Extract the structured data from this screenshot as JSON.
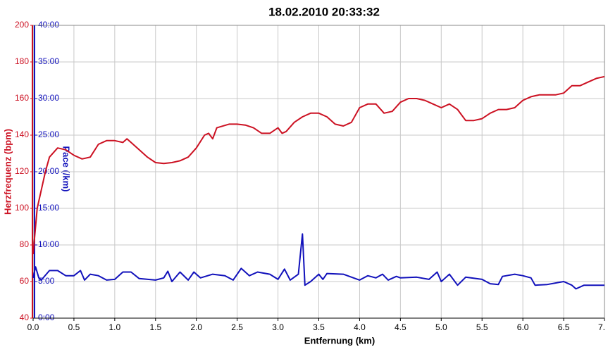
{
  "chart_data": {
    "type": "line",
    "title": "18.02.2010 20:33:32",
    "xlabel": "Entfernung (km)",
    "ylabel": "Herzfrequenz (bpm)",
    "y2label": "Pace (/km)",
    "xlim": [
      0,
      7
    ],
    "xticks": [
      {
        "value": 0,
        "label": "0.0"
      },
      {
        "value": 0.5,
        "label": "0.5"
      },
      {
        "value": 1,
        "label": "1.0"
      },
      {
        "value": 1.5,
        "label": "1.5"
      },
      {
        "value": 2,
        "label": "2.0"
      },
      {
        "value": 2.5,
        "label": "2.5"
      },
      {
        "value": 3,
        "label": "3.0"
      },
      {
        "value": 3.5,
        "label": "3.5"
      },
      {
        "value": 4,
        "label": "4.0"
      },
      {
        "value": 4.5,
        "label": "4.5"
      },
      {
        "value": 5,
        "label": "5.0"
      },
      {
        "value": 5.5,
        "label": "5.5"
      },
      {
        "value": 6,
        "label": "6.0"
      },
      {
        "value": 6.5,
        "label": "6.5"
      },
      {
        "value": 7,
        "label": "7."
      }
    ],
    "ylim": [
      40,
      200
    ],
    "yticks": [
      40,
      60,
      80,
      100,
      120,
      140,
      160,
      180,
      200
    ],
    "y2lim": [
      0,
      40
    ],
    "y2ticks": [
      {
        "value": 0,
        "label": "0:00"
      },
      {
        "value": 5,
        "label": "5:00"
      },
      {
        "value": 10,
        "label": "10:00"
      },
      {
        "value": 15,
        "label": "15:00"
      },
      {
        "value": 20,
        "label": "20:00"
      },
      {
        "value": 25,
        "label": "25:00"
      },
      {
        "value": 30,
        "label": "30:00"
      },
      {
        "value": 35,
        "label": "35:00"
      },
      {
        "value": 40,
        "label": "40:00"
      }
    ],
    "grid": true,
    "series": [
      {
        "color": "#cc1122",
        "x": [
          0,
          0.02,
          0.05,
          0.1,
          0.15,
          0.2,
          0.3,
          0.4,
          0.5,
          0.6,
          0.7,
          0.8,
          0.9,
          1.0,
          1.1,
          1.15,
          1.2,
          1.3,
          1.4,
          1.5,
          1.6,
          1.7,
          1.8,
          1.9,
          2.0,
          2.1,
          2.15,
          2.2,
          2.25,
          2.4,
          2.5,
          2.6,
          2.7,
          2.8,
          2.9,
          3.0,
          3.05,
          3.1,
          3.2,
          3.3,
          3.4,
          3.5,
          3.6,
          3.7,
          3.8,
          3.9,
          4.0,
          4.1,
          4.2,
          4.3,
          4.4,
          4.5,
          4.6,
          4.7,
          4.8,
          4.9,
          5.0,
          5.1,
          5.2,
          5.3,
          5.4,
          5.5,
          5.6,
          5.7,
          5.8,
          5.9,
          6.0,
          6.1,
          6.2,
          6.3,
          6.4,
          6.5,
          6.6,
          6.7,
          6.8,
          6.9,
          7.0
        ],
        "values": [
          75,
          85,
          100,
          110,
          120,
          128,
          133,
          132,
          129,
          127,
          128,
          135,
          137,
          137,
          136,
          138,
          136,
          132,
          128,
          125,
          124.5,
          125,
          126,
          128,
          133,
          140,
          141,
          138,
          144,
          146,
          146,
          145.5,
          144,
          141,
          141,
          144,
          141,
          142,
          147,
          150,
          152,
          152,
          150,
          146,
          145,
          147,
          155,
          157,
          157,
          152,
          153,
          158,
          160,
          160,
          159,
          157,
          155,
          157,
          154,
          148,
          148,
          149,
          152,
          154,
          154,
          155,
          159,
          161,
          162,
          162,
          162,
          163,
          167,
          167,
          169,
          171,
          172
        ]
      },
      {
        "color": "#1111bb",
        "axis": "y2",
        "x": [
          0,
          0.03,
          0.07,
          0.1,
          0.2,
          0.3,
          0.4,
          0.5,
          0.58,
          0.63,
          0.7,
          0.8,
          0.9,
          1.0,
          1.1,
          1.2,
          1.3,
          1.5,
          1.6,
          1.65,
          1.7,
          1.8,
          1.9,
          1.97,
          2.05,
          2.2,
          2.35,
          2.45,
          2.55,
          2.65,
          2.75,
          2.9,
          3.0,
          3.08,
          3.15,
          3.25,
          3.3,
          3.33,
          3.4,
          3.5,
          3.55,
          3.6,
          3.8,
          4.0,
          4.1,
          4.2,
          4.28,
          4.35,
          4.45,
          4.5,
          4.7,
          4.85,
          4.95,
          5.0,
          5.1,
          5.2,
          5.3,
          5.5,
          5.6,
          5.7,
          5.75,
          5.9,
          6.0,
          6.1,
          6.15,
          6.3,
          6.5,
          6.6,
          6.65,
          6.75,
          7.0
        ],
        "values": [
          5.5,
          7,
          5.5,
          5.2,
          6.5,
          6.5,
          5.8,
          5.8,
          6.5,
          5.2,
          6,
          5.8,
          5.2,
          5.3,
          6.3,
          6.3,
          5.4,
          5.2,
          5.5,
          6.4,
          5.0,
          6.3,
          5.2,
          6.3,
          5.5,
          6.0,
          5.8,
          5.2,
          6.8,
          5.8,
          6.3,
          6.0,
          5.3,
          6.7,
          5.2,
          6.0,
          11.5,
          4.5,
          5.0,
          6.0,
          5.3,
          6.1,
          6.0,
          5.2,
          5.8,
          5.5,
          6.0,
          5.2,
          5.7,
          5.5,
          5.6,
          5.3,
          6.3,
          5.0,
          6.0,
          4.5,
          5.6,
          5.3,
          4.7,
          4.6,
          5.7,
          6.0,
          5.8,
          5.5,
          4.5,
          4.6,
          5.0,
          4.5,
          4.0,
          4.5,
          4.5
        ]
      }
    ]
  }
}
